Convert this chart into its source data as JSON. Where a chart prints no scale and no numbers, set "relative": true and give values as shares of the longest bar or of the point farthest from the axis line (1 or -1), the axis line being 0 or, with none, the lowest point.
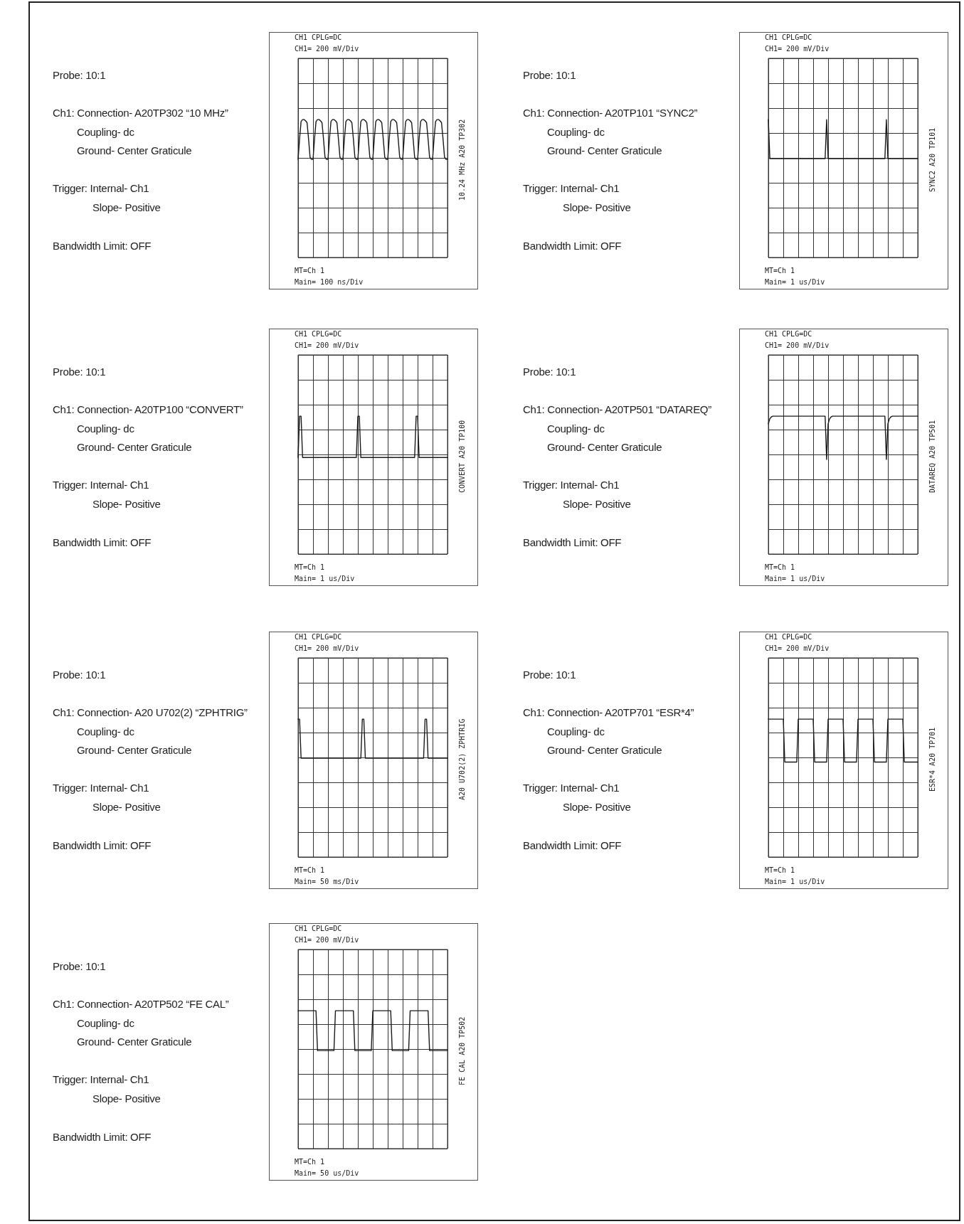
{
  "chart_data": [
    {
      "type": "line",
      "title": "CH1 CPLG=DC",
      "subtitle": "CH1= 200 mV/Div",
      "xlabel": "Main= 100 ns/Div",
      "y2label": "10.24 MHz A20 TP302",
      "annotations": [
        "MT=Ch 1",
        "Probe: 10:1",
        "Ch1: Connection- A20TP302 “10 MHz”",
        "Coupling- dc",
        "Ground- Center Graticule",
        "Trigger: Internal- Ch1",
        "Slope- Positive",
        "Bandwidth Limit: OFF"
      ],
      "relative": true,
      "grid": true,
      "marker": "none",
      "color": "#1a1a1a",
      "categories": [
        null,
        null,
        null,
        null,
        null,
        null,
        null,
        null,
        null,
        null,
        null,
        null,
        null,
        null,
        null,
        null,
        null,
        null,
        null,
        null,
        null,
        null,
        null,
        null,
        null,
        null,
        null,
        null,
        null,
        null,
        null,
        null,
        null,
        null,
        null,
        null,
        null,
        null,
        null,
        null,
        null,
        null,
        null,
        null,
        null,
        null,
        null,
        null,
        null,
        null,
        null,
        null,
        null,
        null,
        null,
        null,
        null,
        null,
        null,
        null,
        null,
        null,
        null,
        null,
        null,
        null,
        null,
        null,
        null,
        null,
        null,
        null,
        null,
        null,
        null,
        null,
        null,
        null,
        null,
        null,
        null,
        null,
        null,
        null,
        null,
        null,
        null,
        null,
        null,
        null,
        null,
        null,
        null,
        null,
        null,
        null,
        null,
        null,
        null,
        null,
        null
      ],
      "values": [
        -0.04,
        0.5,
        0.95,
        1,
        1,
        0.97,
        0.92,
        0.5,
        0.02,
        -0.04,
        -0.04,
        0.5,
        0.95,
        1,
        1,
        0.97,
        0.92,
        0.5,
        0.02,
        -0.04,
        -0.04,
        0.5,
        0.95,
        1,
        1,
        0.97,
        0.92,
        0.5,
        0.02,
        -0.04,
        -0.04,
        0.5,
        0.95,
        1,
        1,
        0.97,
        0.92,
        0.5,
        0.02,
        -0.04,
        -0.04,
        0.5,
        0.95,
        1,
        1,
        0.97,
        0.92,
        0.5,
        0.02,
        -0.04,
        -0.04,
        0.5,
        0.95,
        1,
        1,
        0.97,
        0.92,
        0.5,
        0.02,
        -0.04,
        -0.04,
        0.5,
        0.95,
        1,
        1,
        0.97,
        0.92,
        0.5,
        0.02,
        -0.04,
        -0.04,
        0.5,
        0.95,
        1,
        1,
        0.97,
        0.92,
        0.5,
        0.02,
        -0.04,
        -0.04,
        0.5,
        0.95,
        1,
        1,
        0.97,
        0.92,
        0.5,
        0.02,
        -0.04,
        -0.04,
        0.5,
        0.95,
        1,
        1,
        0.97,
        0.92,
        0.5,
        0.02,
        -0.04,
        -0.04
      ]
    },
    {
      "type": "line",
      "title": "CH1 CPLG=DC",
      "subtitle": "CH1= 200 mV/Div",
      "xlabel": "Main= 1 us/Div",
      "y2label": "SYNC2 A20 TP101",
      "annotations": [
        "MT=Ch 1",
        "Probe: 10:1",
        "Ch1: Connection- A20TP101 “SYNC2”",
        "Coupling- dc",
        "Ground- Center Graticule",
        "Trigger: Internal- Ch1",
        "Slope- Positive",
        "Bandwidth Limit: OFF"
      ],
      "relative": true,
      "grid": true,
      "marker": "none",
      "color": "#1a1a1a",
      "categories": [
        null,
        null,
        null,
        null,
        null,
        null,
        null,
        null,
        null,
        null,
        null,
        null,
        null,
        null,
        null,
        null,
        null,
        null,
        null,
        null,
        null,
        null,
        null,
        null,
        null,
        null,
        null,
        null,
        null,
        null,
        null,
        null,
        null,
        null,
        null,
        null,
        null,
        null,
        null,
        null,
        null,
        null,
        null,
        null,
        null,
        null,
        null,
        null,
        null,
        null,
        null,
        null,
        null,
        null,
        null,
        null,
        null,
        null,
        null,
        null,
        null,
        null,
        null,
        null,
        null,
        null,
        null,
        null,
        null,
        null,
        null,
        null,
        null,
        null,
        null,
        null,
        null,
        null,
        null,
        null,
        null,
        null,
        null,
        null,
        null,
        null,
        null,
        null,
        null,
        null,
        null,
        null,
        null,
        null,
        null,
        null,
        null,
        null,
        null,
        null,
        null
      ],
      "values": [
        1,
        -0.02,
        -0.02,
        -0.02,
        -0.02,
        -0.02,
        -0.02,
        -0.02,
        -0.02,
        -0.02,
        -0.02,
        -0.02,
        -0.02,
        -0.02,
        -0.02,
        -0.02,
        -0.02,
        -0.02,
        -0.02,
        -0.02,
        -0.02,
        -0.02,
        -0.02,
        -0.02,
        -0.02,
        -0.02,
        -0.02,
        -0.02,
        -0.02,
        -0.02,
        -0.02,
        -0.02,
        -0.02,
        -0.02,
        -0.02,
        -0.02,
        -0.02,
        -0.02,
        -0.02,
        1,
        -0.02,
        -0.02,
        -0.02,
        -0.02,
        -0.02,
        -0.02,
        -0.02,
        -0.02,
        -0.02,
        -0.02,
        -0.02,
        -0.02,
        -0.02,
        -0.02,
        -0.02,
        -0.02,
        -0.02,
        -0.02,
        -0.02,
        -0.02,
        -0.02,
        -0.02,
        -0.02,
        -0.02,
        -0.02,
        -0.02,
        -0.02,
        -0.02,
        -0.02,
        -0.02,
        -0.02,
        -0.02,
        -0.02,
        -0.02,
        -0.02,
        -0.02,
        -0.02,
        -0.02,
        -0.02,
        1,
        -0.02,
        -0.02,
        -0.02,
        -0.02,
        -0.02,
        -0.02,
        -0.02,
        -0.02,
        -0.02,
        -0.02,
        -0.02,
        -0.02,
        -0.02,
        -0.02,
        -0.02,
        -0.02,
        -0.02,
        -0.02,
        -0.02,
        -0.02,
        -0.02
      ]
    },
    {
      "type": "line",
      "title": "CH1 CPLG=DC",
      "subtitle": "CH1= 200 mV/Div",
      "xlabel": "Main= 1 us/Div",
      "y2label": "CONVERT A20 TP100",
      "annotations": [
        "MT=Ch 1",
        "Probe: 10:1",
        "Ch1: Connection- A20TP100 “CONVERT”",
        "Coupling- dc",
        "Ground- Center Graticule",
        "Trigger: Internal- Ch1",
        "Slope- Positive",
        "Bandwidth Limit: OFF"
      ],
      "relative": true,
      "grid": true,
      "marker": "none",
      "color": "#1a1a1a",
      "categories": [
        null,
        null,
        null,
        null,
        null,
        null,
        null,
        null,
        null,
        null,
        null,
        null,
        null,
        null,
        null,
        null,
        null,
        null,
        null,
        null,
        null,
        null,
        null,
        null,
        null,
        null,
        null,
        null,
        null,
        null,
        null,
        null,
        null,
        null,
        null,
        null,
        null,
        null,
        null,
        null,
        null,
        null,
        null,
        null,
        null,
        null,
        null,
        null,
        null,
        null,
        null,
        null,
        null,
        null,
        null,
        null,
        null,
        null,
        null,
        null,
        null,
        null,
        null,
        null,
        null,
        null,
        null,
        null,
        null,
        null,
        null,
        null,
        null,
        null,
        null,
        null,
        null,
        null,
        null,
        null,
        null,
        null,
        null,
        null,
        null,
        null,
        null,
        null,
        null,
        null,
        null,
        null,
        null,
        null,
        null,
        null,
        null,
        null,
        null,
        null,
        null
      ],
      "values": [
        -0.08,
        1,
        1,
        -0.08,
        -0.08,
        -0.08,
        -0.08,
        -0.08,
        -0.08,
        -0.08,
        -0.08,
        -0.08,
        -0.08,
        -0.08,
        -0.08,
        -0.08,
        -0.08,
        -0.08,
        -0.08,
        -0.08,
        -0.08,
        -0.08,
        -0.08,
        -0.08,
        -0.08,
        -0.08,
        -0.08,
        -0.08,
        -0.08,
        -0.08,
        -0.08,
        -0.08,
        -0.08,
        -0.08,
        -0.08,
        -0.08,
        -0.08,
        -0.08,
        -0.08,
        -0.08,
        1,
        1,
        -0.08,
        -0.08,
        -0.08,
        -0.08,
        -0.08,
        -0.08,
        -0.08,
        -0.08,
        -0.08,
        -0.08,
        -0.08,
        -0.08,
        -0.08,
        -0.08,
        -0.08,
        -0.08,
        -0.08,
        -0.08,
        -0.08,
        -0.08,
        -0.08,
        -0.08,
        -0.08,
        -0.08,
        -0.08,
        -0.08,
        -0.08,
        -0.08,
        -0.08,
        -0.08,
        -0.08,
        -0.08,
        -0.08,
        -0.08,
        -0.08,
        -0.08,
        -0.08,
        1,
        1,
        -0.08,
        -0.08,
        -0.08,
        -0.08,
        -0.08,
        -0.08,
        -0.08,
        -0.08,
        -0.08,
        -0.08,
        -0.08,
        -0.08,
        -0.08,
        -0.08,
        -0.08,
        -0.08,
        -0.08,
        -0.08,
        -0.08,
        -0.08
      ]
    },
    {
      "type": "line",
      "title": "CH1 CPLG=DC",
      "subtitle": "CH1= 200 mV/Div",
      "xlabel": "Main= 1 us/Div",
      "y2label": "DATAREQ A20 TP501",
      "annotations": [
        "MT=Ch 1",
        "Probe: 10:1",
        "Ch1: Connection- A20TP501 “DATAREQ”",
        "Coupling- dc",
        "Ground- Center Graticule",
        "Trigger: Internal- Ch1",
        "Slope- Positive",
        "Bandwidth Limit: OFF"
      ],
      "relative": true,
      "grid": true,
      "marker": "none",
      "color": "#1a1a1a",
      "categories": [
        null,
        null,
        null,
        null,
        null,
        null,
        null,
        null,
        null,
        null,
        null,
        null,
        null,
        null,
        null,
        null,
        null,
        null,
        null,
        null,
        null,
        null,
        null,
        null,
        null,
        null,
        null,
        null,
        null,
        null,
        null,
        null,
        null,
        null,
        null,
        null,
        null,
        null,
        null,
        null,
        null,
        null,
        null,
        null,
        null,
        null,
        null,
        null,
        null,
        null,
        null,
        null,
        null,
        null,
        null,
        null,
        null,
        null,
        null,
        null,
        null,
        null,
        null,
        null,
        null,
        null,
        null,
        null,
        null,
        null,
        null,
        null,
        null,
        null,
        null,
        null,
        null,
        null,
        null,
        null,
        null,
        null,
        null,
        null,
        null,
        null,
        null,
        null,
        null,
        null,
        null,
        null,
        null,
        null,
        null,
        null,
        null,
        null,
        null,
        null,
        null
      ],
      "values": [
        0.8,
        0.93,
        0.98,
        1,
        1,
        1,
        1,
        1,
        1,
        1,
        1,
        1,
        1,
        1,
        1,
        1,
        1,
        1,
        1,
        1,
        1,
        1,
        1,
        1,
        1,
        1,
        1,
        1,
        1,
        1,
        1,
        1,
        1,
        1,
        1,
        1,
        1,
        1,
        1,
        -0.13,
        0.8,
        0.93,
        0.98,
        1,
        1,
        1,
        1,
        1,
        1,
        1,
        1,
        1,
        1,
        1,
        1,
        1,
        1,
        1,
        1,
        1,
        1,
        1,
        1,
        1,
        1,
        1,
        1,
        1,
        1,
        1,
        1,
        1,
        1,
        1,
        1,
        1,
        1,
        1,
        1,
        -0.13,
        0.8,
        0.93,
        0.98,
        1,
        1,
        1,
        1,
        1,
        1,
        1,
        1,
        1,
        1,
        1,
        1,
        1,
        1,
        1,
        1,
        1,
        1
      ]
    },
    {
      "type": "line",
      "title": "CH1 CPLG=DC",
      "subtitle": "CH1= 200 mV/Div",
      "xlabel": "Main= 50 ms/Div",
      "y2label": "A20 U702(2) ZPHTRIG",
      "annotations": [
        "MT=Ch 1",
        "Probe: 10:1",
        "Ch1: Connection- A20 U702(2) “ZPHTRIG”",
        "Coupling- dc",
        "Ground- Center Graticule",
        "Trigger: Internal- Ch1",
        "Slope- Positive",
        "Bandwidth Limit: OFF"
      ],
      "relative": true,
      "grid": true,
      "marker": "none",
      "color": "#1a1a1a",
      "categories": [
        null,
        null,
        null,
        null,
        null,
        null,
        null,
        null,
        null,
        null,
        null,
        null,
        null,
        null,
        null,
        null,
        null,
        null,
        null,
        null,
        null,
        null,
        null,
        null,
        null,
        null,
        null,
        null,
        null,
        null,
        null,
        null,
        null,
        null,
        null,
        null,
        null,
        null,
        null,
        null,
        null,
        null,
        null,
        null,
        null,
        null,
        null,
        null,
        null,
        null,
        null,
        null,
        null,
        null,
        null,
        null,
        null,
        null,
        null,
        null,
        null,
        null,
        null,
        null,
        null,
        null,
        null,
        null,
        null,
        null,
        null,
        null,
        null,
        null,
        null,
        null,
        null,
        null,
        null,
        null,
        null,
        null,
        null,
        null,
        null,
        null,
        null,
        null,
        null,
        null,
        null,
        null,
        null,
        null,
        null,
        null,
        null,
        null,
        null,
        null,
        null
      ],
      "values": [
        1,
        1,
        -0.02,
        -0.02,
        -0.02,
        -0.02,
        -0.02,
        -0.02,
        -0.02,
        -0.02,
        -0.02,
        -0.02,
        -0.02,
        -0.02,
        -0.02,
        -0.02,
        -0.02,
        -0.02,
        -0.02,
        -0.02,
        -0.02,
        -0.02,
        -0.02,
        -0.02,
        -0.02,
        -0.02,
        -0.02,
        -0.02,
        -0.02,
        -0.02,
        -0.02,
        -0.02,
        -0.02,
        -0.02,
        -0.02,
        -0.02,
        -0.02,
        -0.02,
        -0.02,
        -0.02,
        -0.02,
        -0.02,
        -0.02,
        1,
        1,
        -0.02,
        -0.02,
        -0.02,
        -0.02,
        -0.02,
        -0.02,
        -0.02,
        -0.02,
        -0.02,
        -0.02,
        -0.02,
        -0.02,
        -0.02,
        -0.02,
        -0.02,
        -0.02,
        -0.02,
        -0.02,
        -0.02,
        -0.02,
        -0.02,
        -0.02,
        -0.02,
        -0.02,
        -0.02,
        -0.02,
        -0.02,
        -0.02,
        -0.02,
        -0.02,
        -0.02,
        -0.02,
        -0.02,
        -0.02,
        -0.02,
        -0.02,
        -0.02,
        -0.02,
        -0.02,
        -0.02,
        1,
        1,
        -0.02,
        -0.02,
        -0.02,
        -0.02,
        -0.02,
        -0.02,
        -0.02,
        -0.02,
        -0.02,
        -0.02,
        -0.02,
        -0.02,
        -0.02,
        -0.02
      ]
    },
    {
      "type": "line",
      "title": "CH1 CPLG=DC",
      "subtitle": "CH1= 200 mV/Div",
      "xlabel": "Main= 1 us/Div",
      "y2label": "ESR*4 A20 TP701",
      "annotations": [
        "MT=Ch 1",
        "Probe: 10:1",
        "Ch1: Connection- A20TP701 “ESR*4”",
        "Coupling- dc",
        "Ground- Center Graticule",
        "Trigger: Internal- Ch1",
        "Slope- Positive",
        "Bandwidth Limit: OFF"
      ],
      "relative": true,
      "grid": true,
      "marker": "none",
      "color": "#1a1a1a",
      "categories": [
        null,
        null,
        null,
        null,
        null,
        null,
        null,
        null,
        null,
        null,
        null,
        null,
        null,
        null,
        null,
        null,
        null,
        null,
        null,
        null,
        null,
        null,
        null,
        null,
        null,
        null,
        null,
        null,
        null,
        null,
        null,
        null,
        null,
        null,
        null,
        null,
        null,
        null,
        null,
        null,
        null,
        null,
        null,
        null,
        null,
        null,
        null,
        null,
        null,
        null,
        null,
        null,
        null,
        null,
        null,
        null,
        null,
        null,
        null,
        null,
        null,
        null,
        null,
        null,
        null,
        null,
        null,
        null,
        null,
        null,
        null,
        null,
        null,
        null,
        null,
        null,
        null,
        null,
        null,
        null,
        null,
        null,
        null,
        null,
        null,
        null,
        null,
        null,
        null,
        null,
        null,
        null,
        null,
        null,
        null,
        null,
        null,
        null,
        null,
        null,
        null
      ],
      "values": [
        1,
        1,
        1,
        1,
        1,
        1,
        1,
        1,
        1,
        1,
        1,
        -0.12,
        -0.12,
        -0.12,
        -0.12,
        -0.12,
        -0.12,
        -0.12,
        -0.12,
        -0.12,
        1,
        1,
        1,
        1,
        1,
        1,
        1,
        1,
        1,
        1,
        1,
        -0.12,
        -0.12,
        -0.12,
        -0.12,
        -0.12,
        -0.12,
        -0.12,
        -0.12,
        -0.12,
        1,
        1,
        1,
        1,
        1,
        1,
        1,
        1,
        1,
        1,
        1,
        -0.12,
        -0.12,
        -0.12,
        -0.12,
        -0.12,
        -0.12,
        -0.12,
        -0.12,
        -0.12,
        1,
        1,
        1,
        1,
        1,
        1,
        1,
        1,
        1,
        1,
        1,
        -0.12,
        -0.12,
        -0.12,
        -0.12,
        -0.12,
        -0.12,
        -0.12,
        -0.12,
        -0.12,
        1,
        1,
        1,
        1,
        1,
        1,
        1,
        1,
        1,
        1,
        1,
        -0.12,
        -0.12,
        -0.12,
        -0.12,
        -0.12,
        -0.12,
        -0.12,
        -0.12,
        -0.12,
        -0.12
      ]
    },
    {
      "type": "line",
      "title": "CH1 CPLG=DC",
      "subtitle": "CH1= 200 mV/Div",
      "xlabel": "Main= 50 us/Div",
      "y2label": "FE CAL A20 TP502",
      "annotations": [
        "MT=Ch 1",
        "Probe: 10:1",
        "Ch1: Connection- A20TP502 “FE CAL”",
        "Coupling- dc",
        "Ground- Center Graticule",
        "Trigger: Internal- Ch1",
        "Slope- Positive",
        "Bandwidth Limit: OFF"
      ],
      "relative": true,
      "grid": true,
      "marker": "none",
      "color": "#1a1a1a",
      "categories": [
        null,
        null,
        null,
        null,
        null,
        null,
        null,
        null,
        null,
        null,
        null,
        null,
        null,
        null,
        null,
        null,
        null,
        null,
        null,
        null,
        null,
        null,
        null,
        null,
        null,
        null,
        null,
        null,
        null,
        null,
        null,
        null,
        null,
        null,
        null,
        null,
        null,
        null,
        null,
        null,
        null,
        null,
        null,
        null,
        null,
        null,
        null,
        null,
        null,
        null,
        null,
        null,
        null,
        null,
        null,
        null,
        null,
        null,
        null,
        null,
        null,
        null,
        null,
        null,
        null,
        null,
        null,
        null,
        null,
        null,
        null,
        null,
        null,
        null,
        null,
        null,
        null,
        null,
        null,
        null,
        null,
        null,
        null,
        null,
        null,
        null,
        null,
        null,
        null,
        null,
        null,
        null,
        null,
        null,
        null,
        null,
        null,
        null,
        null,
        null,
        null
      ],
      "values": [
        1,
        1,
        1,
        1,
        1,
        1,
        1,
        1,
        1,
        1,
        1,
        1,
        1,
        -0.04,
        -0.04,
        -0.04,
        -0.04,
        -0.04,
        -0.04,
        -0.04,
        -0.04,
        -0.04,
        -0.04,
        -0.04,
        -0.04,
        1,
        1,
        1,
        1,
        1,
        1,
        1,
        1,
        1,
        1,
        1,
        1,
        1,
        -0.04,
        -0.04,
        -0.04,
        -0.04,
        -0.04,
        -0.04,
        -0.04,
        -0.04,
        -0.04,
        -0.04,
        -0.04,
        -0.04,
        1,
        1,
        1,
        1,
        1,
        1,
        1,
        1,
        1,
        1,
        1,
        1,
        1,
        -0.04,
        -0.04,
        -0.04,
        -0.04,
        -0.04,
        -0.04,
        -0.04,
        -0.04,
        -0.04,
        -0.04,
        -0.04,
        -0.04,
        1,
        1,
        1,
        1,
        1,
        1,
        1,
        1,
        1,
        1,
        1,
        1,
        1,
        -0.04,
        -0.04,
        -0.04,
        -0.04,
        -0.04,
        -0.04,
        -0.04,
        -0.04,
        -0.04,
        -0.04,
        -0.04,
        -0.04,
        -0.04
      ]
    }
  ]
}
